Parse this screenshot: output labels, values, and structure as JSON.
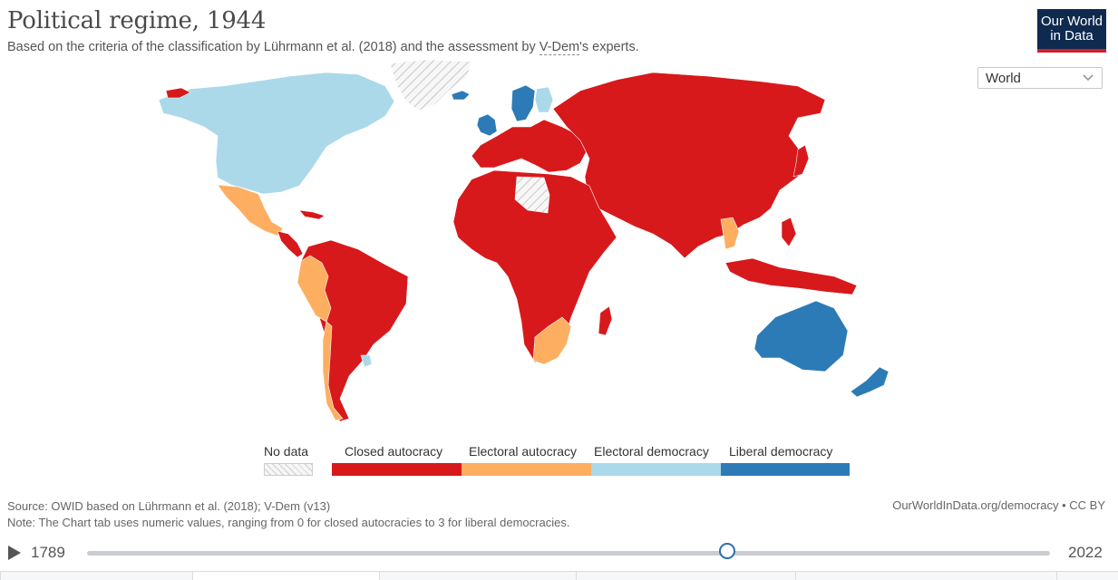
{
  "header": {
    "title": "Political regime, 1944",
    "subtitle_pre": "Based on the criteria of the classification by Lührmann et al. (2018) and the assessment by ",
    "subtitle_link": "V-Dem",
    "subtitle_post": "'s experts."
  },
  "logo": {
    "line1": "Our World",
    "line2": "in Data"
  },
  "region_select": {
    "value": "World",
    "icon": "chevron-down-icon"
  },
  "legend": {
    "items": [
      {
        "label": "No data",
        "color": "#f2f2f2",
        "pattern": "hatched"
      },
      {
        "label": "Closed autocracy",
        "color": "#d7191c"
      },
      {
        "label": "Electoral autocracy",
        "color": "#fdae61"
      },
      {
        "label": "Electoral democracy",
        "color": "#abd9e9"
      },
      {
        "label": "Liberal democracy",
        "color": "#2c7bb6"
      }
    ]
  },
  "footer": {
    "source": "Source: OWID based on Lührmann et al. (2018); V-Dem (v13)",
    "note": "Note: The Chart tab uses numeric values, ranging from 0 for closed autocracies to 3 for liberal democracies.",
    "credit": "OurWorldInData.org/democracy • CC BY"
  },
  "timeline": {
    "start": "1789",
    "end": "2022",
    "current_year": 1944,
    "play_icon": "play-icon"
  },
  "map_regions": {
    "north_america": "Electoral democracy",
    "greenland": "No data",
    "mexico": "Electoral autocracy",
    "central_america": "Closed autocracy",
    "south_america_north": "Closed autocracy",
    "peru_ecuador": "Electoral autocracy",
    "chile": "Electoral autocracy",
    "argentina": "Closed autocracy",
    "uruguay": "Electoral democracy",
    "uk_ireland": "Liberal democracy",
    "iceland": "Liberal democracy",
    "sweden": "Liberal democracy",
    "finland": "Electoral democracy",
    "europe": "Closed autocracy",
    "russia_asia": "Closed autocracy",
    "africa": "Closed autocracy",
    "south_africa": "Electoral autocracy",
    "libya": "No data",
    "thailand": "Electoral autocracy",
    "australia": "Liberal democracy",
    "new_zealand": "Liberal democracy",
    "indonesia_png": "Closed autocracy"
  }
}
